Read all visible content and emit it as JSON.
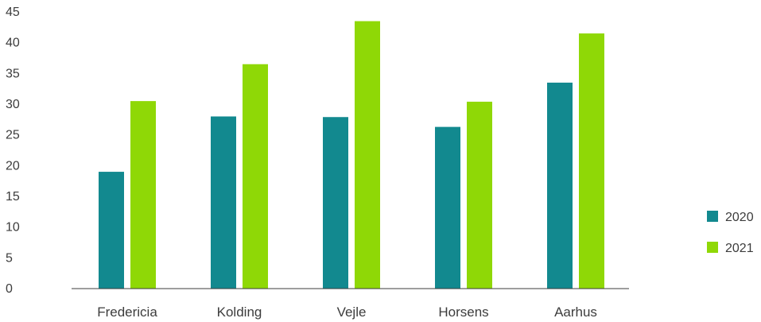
{
  "chart_data": {
    "type": "bar",
    "categories": [
      "Fredericia",
      "Kolding",
      "Vejle",
      "Horsens",
      "Aarhus"
    ],
    "series": [
      {
        "name": "2020",
        "values": [
          19.0,
          28.0,
          27.9,
          26.3,
          33.5
        ],
        "color": "#12898f"
      },
      {
        "name": "2021",
        "values": [
          30.5,
          36.5,
          43.5,
          30.4,
          41.5
        ],
        "color": "#8fd806"
      }
    ],
    "yticks": [
      "0",
      "5",
      "10",
      "15",
      "20",
      "25",
      "30",
      "35",
      "40",
      "45"
    ],
    "ylim": [
      0,
      45
    ],
    "grid": false,
    "legend_position": "right"
  }
}
